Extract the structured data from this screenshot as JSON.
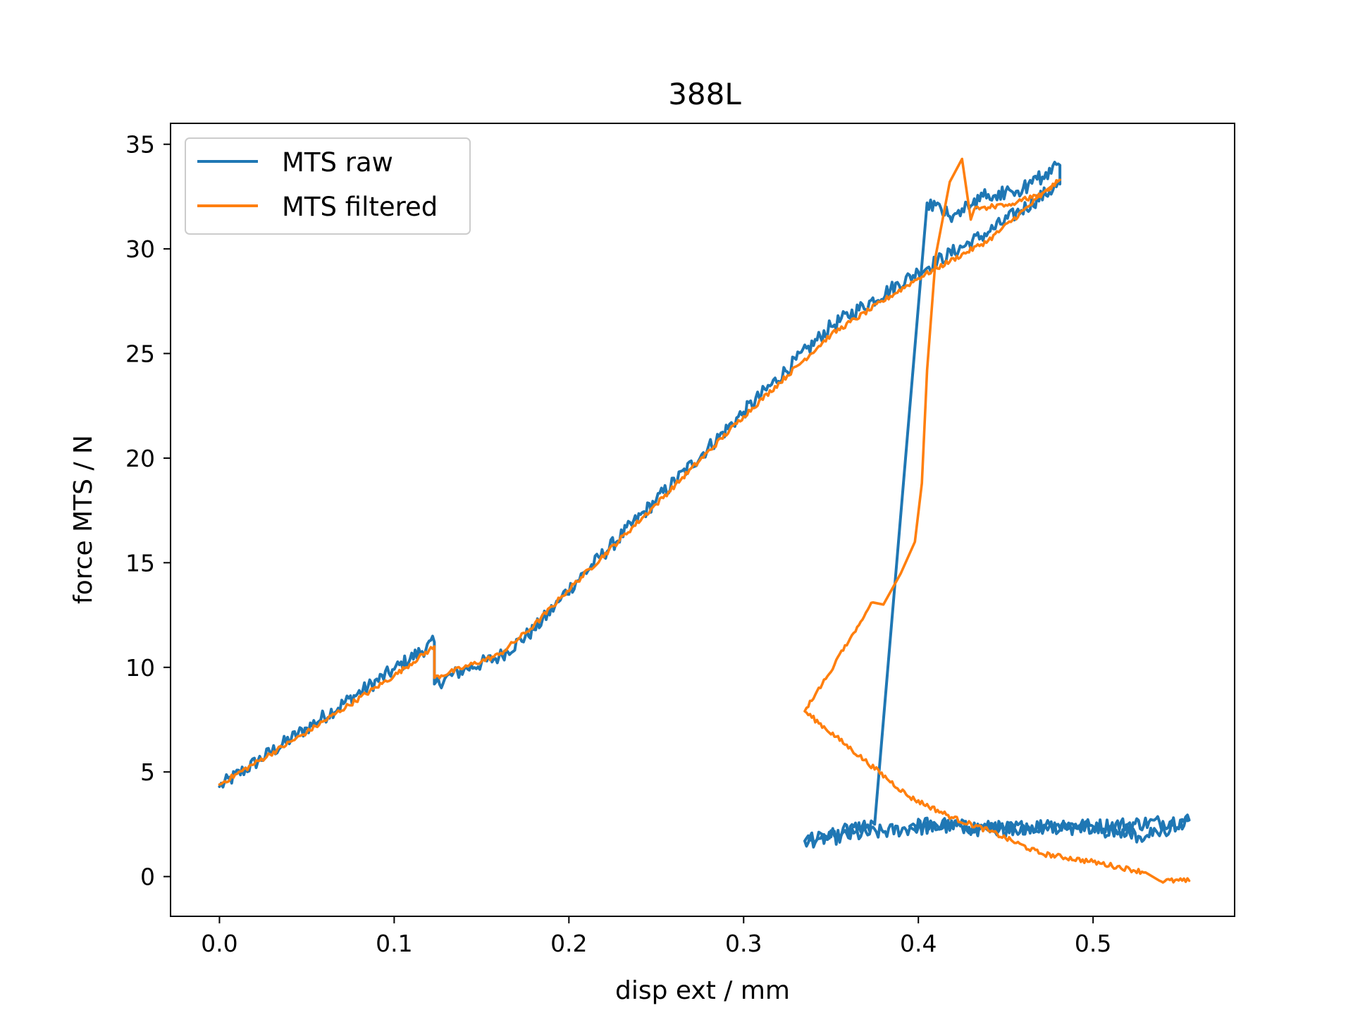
{
  "chart_data": {
    "type": "line",
    "title": "388L",
    "xlabel": "disp ext / mm",
    "ylabel": "force MTS / N",
    "xlim": [
      -0.028,
      0.581
    ],
    "ylim": [
      -1.9,
      36.0
    ],
    "xticks": [
      0.0,
      0.1,
      0.2,
      0.3,
      0.4,
      0.5
    ],
    "xtick_labels": [
      "0.0",
      "0.1",
      "0.2",
      "0.3",
      "0.4",
      "0.5"
    ],
    "yticks": [
      0,
      5,
      10,
      15,
      20,
      25,
      30,
      35
    ],
    "ytick_labels": [
      "0",
      "5",
      "10",
      "15",
      "20",
      "25",
      "30",
      "35"
    ],
    "grid": false,
    "legend_position": "upper-left",
    "series": [
      {
        "name": "MTS raw",
        "color": "#1f77b4",
        "noise": 0.35,
        "x": [
          0.0,
          0.05,
          0.1,
          0.123,
          0.123,
          0.14,
          0.16,
          0.18,
          0.195,
          0.196,
          0.25,
          0.3,
          0.35,
          0.4,
          0.44,
          0.481,
          0.481,
          0.46,
          0.44,
          0.42,
          0.405,
          0.375,
          0.335,
          0.395,
          0.42,
          0.45,
          0.48,
          0.5,
          0.52,
          0.555,
          0.53,
          0.5,
          0.47,
          0.44,
          0.41,
          0.395
        ],
        "y": [
          4.3,
          7.1,
          9.9,
          11.2,
          9.2,
          9.9,
          10.5,
          11.8,
          13.2,
          13.4,
          18.0,
          22.2,
          26.3,
          28.9,
          30.8,
          33.1,
          34.0,
          32.9,
          32.6,
          31.6,
          32.2,
          2.5,
          1.7,
          2.3,
          2.4,
          2.3,
          2.5,
          2.4,
          2.5,
          2.7,
          1.9,
          2.3,
          2.4,
          2.2,
          2.5,
          2.4
        ]
      },
      {
        "name": "MTS filtered",
        "color": "#ff7f0e",
        "noise": 0.12,
        "x": [
          0.0,
          0.05,
          0.1,
          0.123,
          0.123,
          0.14,
          0.16,
          0.18,
          0.195,
          0.196,
          0.25,
          0.3,
          0.35,
          0.4,
          0.44,
          0.481,
          0.47,
          0.45,
          0.432,
          0.43,
          0.425,
          0.418,
          0.41,
          0.405,
          0.402,
          0.398,
          0.39,
          0.38,
          0.374,
          0.335,
          0.395,
          0.42,
          0.44,
          0.47,
          0.5,
          0.53,
          0.538,
          0.555
        ],
        "y": [
          4.4,
          6.9,
          9.6,
          11.0,
          9.5,
          10.0,
          10.6,
          12.0,
          13.3,
          13.4,
          17.8,
          22.0,
          25.9,
          28.6,
          30.4,
          33.3,
          32.6,
          32.1,
          31.9,
          31.4,
          34.3,
          33.2,
          29.7,
          24.2,
          18.8,
          16.0,
          14.5,
          13.0,
          13.1,
          7.9,
          3.8,
          2.8,
          2.2,
          1.1,
          0.7,
          0.2,
          -0.2,
          -0.2
        ]
      }
    ]
  }
}
